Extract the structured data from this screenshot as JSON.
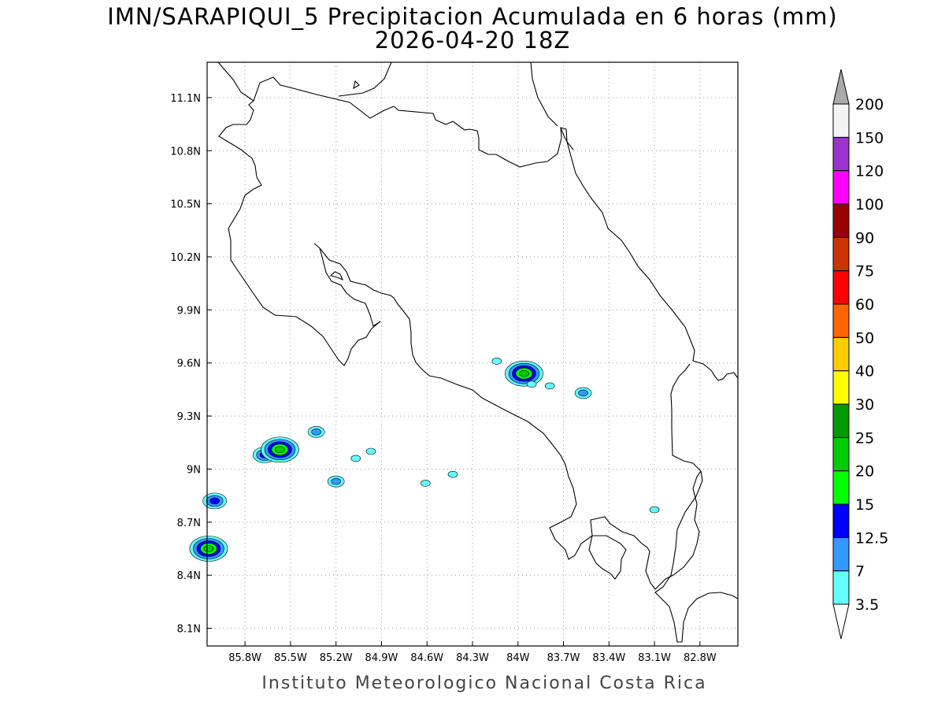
{
  "title": {
    "line1": "IMN/SARAPIQUI_5 Precipitacion Acumulada en 6 horas (mm)",
    "line2": "2026-04-20 18Z"
  },
  "credit": "Instituto Meteorologico Nacional Costa Rica",
  "map": {
    "lon_range": [
      -86.05,
      -82.55
    ],
    "lat_range": [
      8.0,
      11.3
    ],
    "lon_ticks": [
      "85.8W",
      "85.5W",
      "85.2W",
      "84.9W",
      "84.6W",
      "84.3W",
      "84W",
      "83.7W",
      "83.4W",
      "83.1W",
      "82.8W"
    ],
    "lat_ticks": [
      "8.1N",
      "8.4N",
      "8.7N",
      "9N",
      "9.3N",
      "9.6N",
      "9.9N",
      "10.2N",
      "10.5N",
      "10.8N",
      "11.1N"
    ],
    "grid": "dotted"
  },
  "colorbar": {
    "labels": [
      "3.5",
      "7",
      "12.5",
      "15",
      "20",
      "25",
      "30",
      "40",
      "50",
      "60",
      "75",
      "90",
      "100",
      "120",
      "150",
      "200"
    ],
    "colors": [
      "#66ffff",
      "#3399ff",
      "#0000ff",
      "#00ff00",
      "#00cc00",
      "#009900",
      "#ffff00",
      "#ffcc00",
      "#ff6600",
      "#ff0000",
      "#cc3300",
      "#990000",
      "#ff00ff",
      "#9933cc",
      "#f4f4f4",
      "#aaaaaa"
    ]
  },
  "rain_cells": [
    {
      "lon": -85.67,
      "lat": 9.08,
      "level": 12.5
    },
    {
      "lon": -85.57,
      "lat": 9.11,
      "level": 20
    },
    {
      "lon": -85.33,
      "lat": 9.21,
      "level": 7
    },
    {
      "lon": -85.2,
      "lat": 8.93,
      "level": 7
    },
    {
      "lon": -85.07,
      "lat": 9.06,
      "level": 3.5
    },
    {
      "lon": -84.97,
      "lat": 9.1,
      "level": 3.5
    },
    {
      "lon": -84.61,
      "lat": 8.92,
      "level": 3.5
    },
    {
      "lon": -84.43,
      "lat": 8.97,
      "level": 3.5
    },
    {
      "lon": -84.14,
      "lat": 9.61,
      "level": 3.5
    },
    {
      "lon": -83.96,
      "lat": 9.54,
      "level": 20
    },
    {
      "lon": -83.91,
      "lat": 9.48,
      "level": 3.5
    },
    {
      "lon": -83.79,
      "lat": 9.47,
      "level": 3.5
    },
    {
      "lon": -83.57,
      "lat": 9.43,
      "level": 7
    },
    {
      "lon": -83.1,
      "lat": 8.77,
      "level": 3.5
    },
    {
      "lon": -86.0,
      "lat": 8.82,
      "level": 12.5
    },
    {
      "lon": -86.04,
      "lat": 8.55,
      "level": 20
    }
  ]
}
